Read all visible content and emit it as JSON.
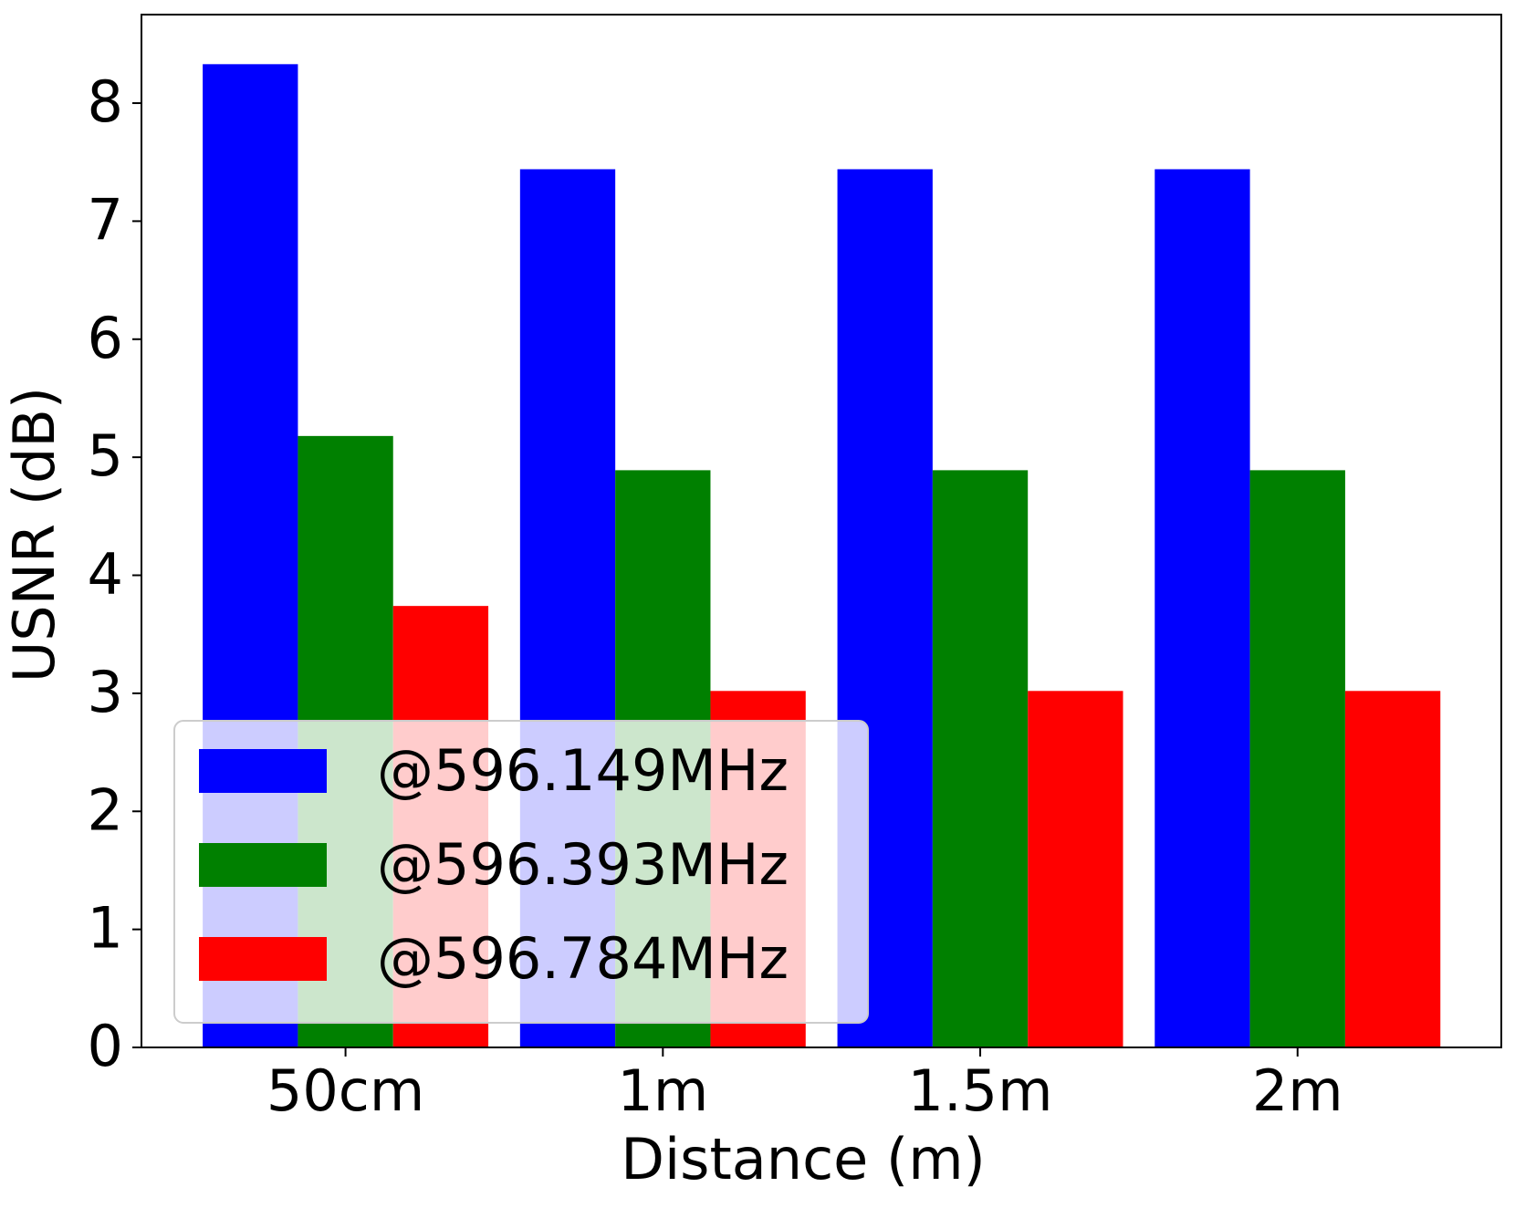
{
  "chart_data": {
    "type": "bar",
    "x_label": "Distance (m)",
    "y_label": "USNR (dB)",
    "categories": [
      "50cm",
      "1m",
      "1.5m",
      "2m"
    ],
    "series": [
      {
        "name": "@596.149MHz",
        "color": "#0000ff",
        "values": [
          8.33,
          7.44,
          7.44,
          7.44
        ]
      },
      {
        "name": "@596.393MHz",
        "color": "#008000",
        "values": [
          5.18,
          4.89,
          4.89,
          4.89
        ]
      },
      {
        "name": "@596.784MHz",
        "color": "#ff0000",
        "values": [
          3.74,
          3.02,
          3.02,
          3.02
        ]
      }
    ],
    "ylim": [
      0,
      8.75
    ],
    "yticks": [
      0,
      1,
      2,
      3,
      4,
      5,
      6,
      7,
      8
    ],
    "legend": "lower left"
  }
}
